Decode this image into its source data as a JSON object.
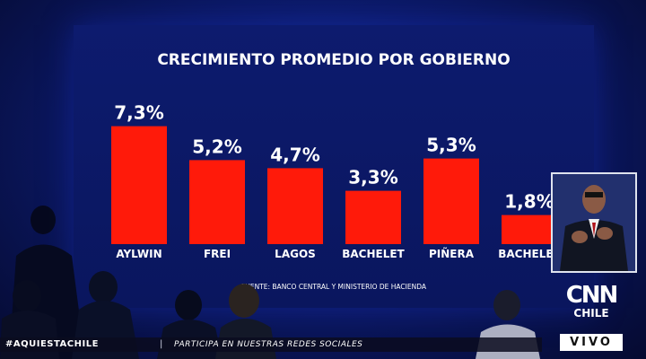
{
  "chart_data": {
    "type": "bar",
    "title": "CRECIMIENTO PROMEDIO POR GOBIERNO",
    "categories": [
      "AYLWIN",
      "FREI",
      "LAGOS",
      "BACHELET",
      "PIÑERA",
      "BACHELET"
    ],
    "values": [
      7.3,
      5.2,
      4.7,
      3.3,
      5.3,
      1.8
    ],
    "value_labels": [
      "7,3%",
      "5,2%",
      "4,7%",
      "3,3%",
      "5,3%",
      "1,8%"
    ],
    "ylim": [
      0,
      8
    ],
    "xlabel": "",
    "ylabel": "",
    "grid": false,
    "bar_color": "#ff1a0a",
    "source": "FUENTE: BANCO CENTRAL Y MINISTERIO DE HACIENDA"
  },
  "broadcast": {
    "hashtag": "#AQUIESTACHILE",
    "ticker_separator": "|",
    "ticker_message": "PARTICIPA EN NUESTRAS REDES SOCIALES",
    "logo_top": "CNN",
    "logo_bottom": "CHILE",
    "live_badge": "VIVO"
  },
  "colors": {
    "screen_background": "#0b1862",
    "stage_background": "#0c1a6a",
    "text": "#ffffff"
  }
}
